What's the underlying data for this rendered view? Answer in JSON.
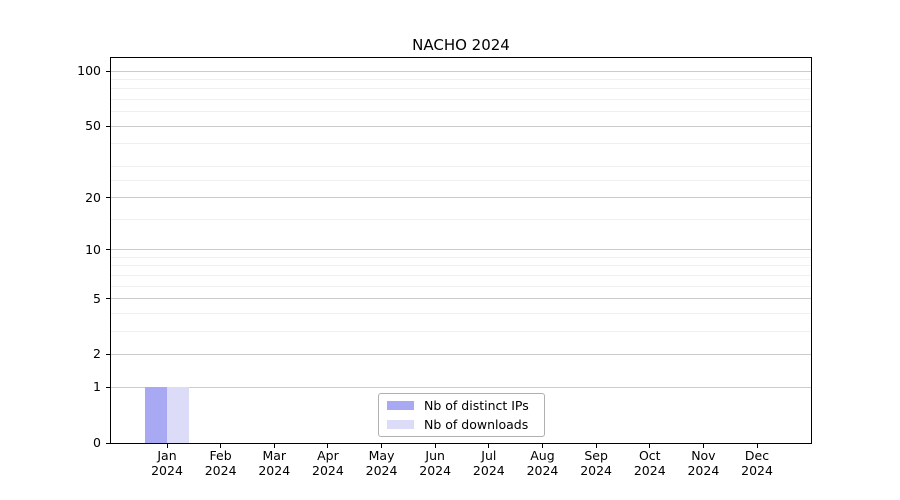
{
  "chart_data": {
    "type": "bar",
    "title": "NACHO 2024",
    "categories": [
      {
        "month": "Jan",
        "year": "2024"
      },
      {
        "month": "Feb",
        "year": "2024"
      },
      {
        "month": "Mar",
        "year": "2024"
      },
      {
        "month": "Apr",
        "year": "2024"
      },
      {
        "month": "May",
        "year": "2024"
      },
      {
        "month": "Jun",
        "year": "2024"
      },
      {
        "month": "Jul",
        "year": "2024"
      },
      {
        "month": "Aug",
        "year": "2024"
      },
      {
        "month": "Sep",
        "year": "2024"
      },
      {
        "month": "Oct",
        "year": "2024"
      },
      {
        "month": "Nov",
        "year": "2024"
      },
      {
        "month": "Dec",
        "year": "2024"
      }
    ],
    "series": [
      {
        "name": "Nb of distinct IPs",
        "color": "#a9a9f3",
        "values": [
          1,
          0,
          0,
          0,
          0,
          0,
          0,
          0,
          0,
          0,
          0,
          0
        ]
      },
      {
        "name": "Nb of downloads",
        "color": "#dcdcf8",
        "values": [
          1,
          0,
          0,
          0,
          0,
          0,
          0,
          0,
          0,
          0,
          0,
          0
        ]
      }
    ],
    "xlabel": "",
    "ylabel": "",
    "y_scale": "log1p",
    "ylim": [
      0,
      118
    ],
    "y_ticks": [
      0,
      1,
      2,
      5,
      10,
      20,
      50,
      100
    ],
    "y_minor_gridlines": [
      3,
      4,
      6,
      7,
      8,
      9,
      15,
      25,
      30,
      40,
      60,
      70,
      80,
      90
    ],
    "grid": true,
    "legend_position": "lower center"
  }
}
